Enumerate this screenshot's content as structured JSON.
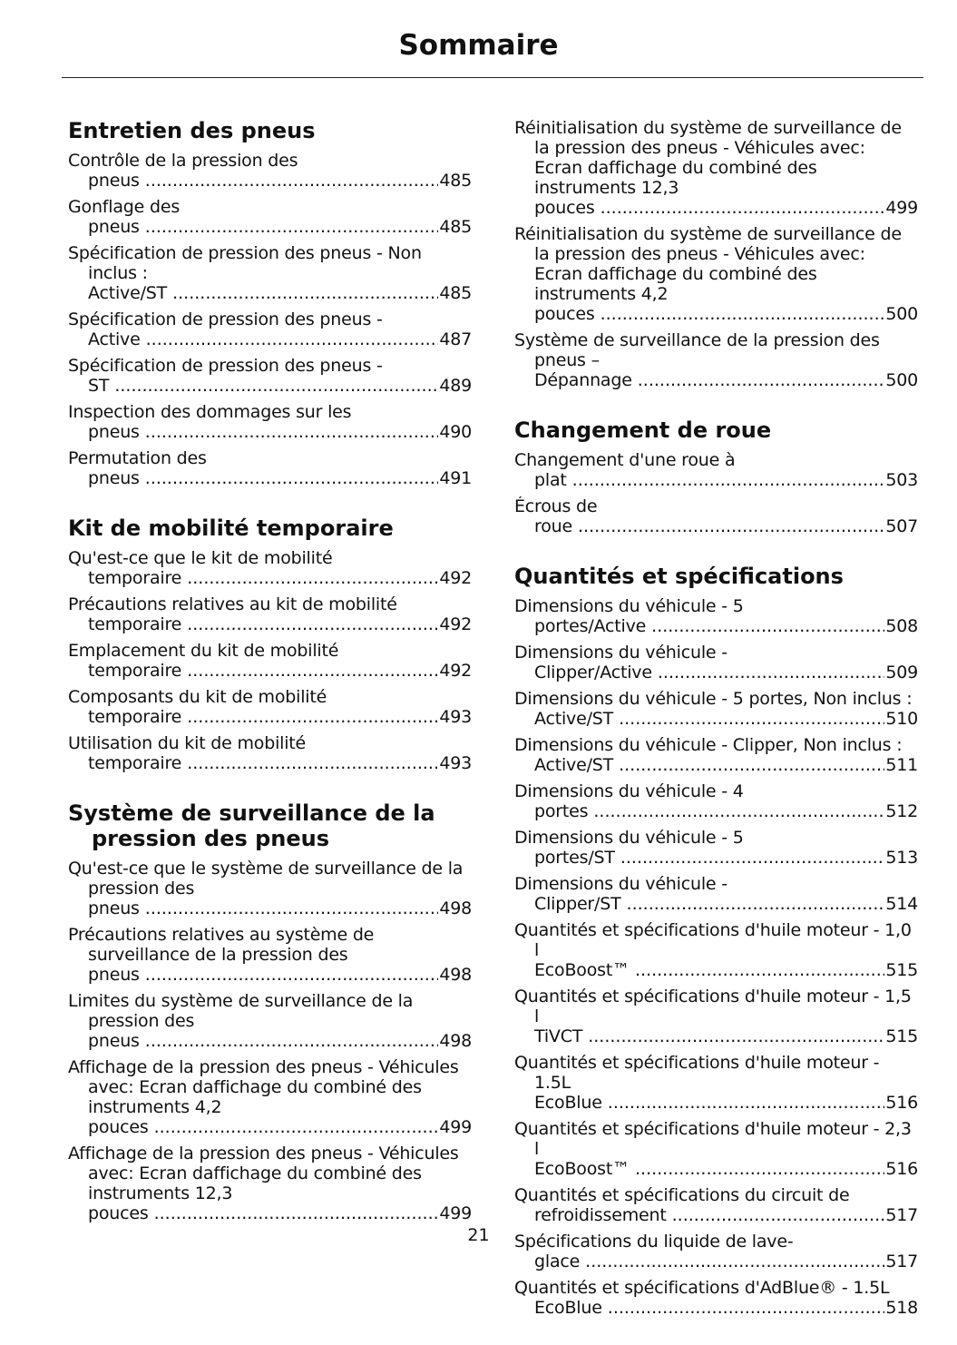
{
  "header": {
    "title": "Sommaire"
  },
  "columns": [
    {
      "sections": [
        {
          "heading": "Entretien des pneus",
          "entries": [
            {
              "title": "Contrôle de la pression des pneus",
              "page": "485"
            },
            {
              "title": "Gonflage des pneus",
              "page": "485"
            },
            {
              "title": "Spécification de pression des pneus - Non inclus : Active/ST",
              "page": "485"
            },
            {
              "title": "Spécification de pression des pneus - Active",
              "page": "487"
            },
            {
              "title": "Spécification de pression des pneus - ST",
              "page": "489"
            },
            {
              "title": "Inspection des dommages sur les pneus",
              "page": "490"
            },
            {
              "title": "Permutation des pneus",
              "page": "491"
            }
          ]
        },
        {
          "heading": "Kit de mobilité temporaire",
          "entries": [
            {
              "title": "Qu'est-ce que le kit de mobilité temporaire",
              "page": "492"
            },
            {
              "title": "Précautions relatives au kit de mobilité temporaire",
              "page": "492"
            },
            {
              "title": "Emplacement du kit de mobilité temporaire",
              "page": "492"
            },
            {
              "title": "Composants du kit de mobilité temporaire",
              "page": "493"
            },
            {
              "title": "Utilisation du kit de mobilité temporaire",
              "page": "493"
            }
          ]
        },
        {
          "heading": "Système de surveillance de la pression des pneus",
          "entries": [
            {
              "title": "Qu'est-ce que le système de surveillance de la pression des pneus",
              "page": "498"
            },
            {
              "title": "Précautions relatives au système de surveillance de la pression des pneus",
              "page": "498"
            },
            {
              "title": "Limites du système de surveillance de la pression des pneus",
              "page": "498"
            },
            {
              "title": "Affichage de la pression des pneus - Véhicules avec: Ecran daffichage du combiné des instruments 4,2 pouces",
              "page": "499"
            },
            {
              "title": "Affichage de la pression des pneus - Véhicules avec: Ecran daffichage du combiné des instruments 12,3 pouces",
              "page": "499"
            }
          ]
        }
      ]
    },
    {
      "sections": [
        {
          "entries": [
            {
              "title": "Réinitialisation du système de surveillance de la pression des pneus - Véhicules avec: Ecran daffichage du combiné des instruments 12,3 pouces",
              "page": "499"
            },
            {
              "title": "Réinitialisation du système de surveillance de la pression des pneus - Véhicules avec: Ecran daffichage du combiné des instruments 4,2 pouces",
              "page": "500"
            },
            {
              "title": "Système de surveillance de la pression des pneus – Dépannage",
              "page": "500"
            }
          ]
        },
        {
          "heading": "Changement de roue",
          "entries": [
            {
              "title": "Changement d'une roue à plat",
              "page": "503"
            },
            {
              "title": "Écrous de roue",
              "page": "507"
            }
          ]
        },
        {
          "heading": "Quantités et spécifications",
          "entries": [
            {
              "title": "Dimensions du véhicule - 5 portes/Active",
              "page": "508"
            },
            {
              "title": "Dimensions du véhicule - Clipper/Active",
              "page": "509"
            },
            {
              "title": "Dimensions du véhicule - 5 portes, Non inclus : Active/ST",
              "page": "510"
            },
            {
              "title": "Dimensions du véhicule - Clipper, Non inclus : Active/ST",
              "page": "511"
            },
            {
              "title": "Dimensions du véhicule - 4 portes",
              "page": "512"
            },
            {
              "title": "Dimensions du véhicule - 5 portes/ST",
              "page": "513"
            },
            {
              "title": "Dimensions du véhicule - Clipper/ST",
              "page": "514"
            },
            {
              "title": "Quantités et spécifications d'huile moteur - 1,0 l EcoBoost™",
              "page": "515"
            },
            {
              "title": "Quantités et spécifications d'huile moteur - 1,5 l TiVCT",
              "page": "515"
            },
            {
              "title": "Quantités et spécifications d'huile moteur - 1.5L EcoBlue",
              "page": "516"
            },
            {
              "title": "Quantités et spécifications d'huile moteur - 2,3 l EcoBoost™",
              "page": "516"
            },
            {
              "title": "Quantités et spécifications du circuit de refroidissement",
              "page": "517"
            },
            {
              "title": "Spécifications du liquide de lave-glace",
              "page": "517"
            },
            {
              "title": "Quantités et spécifications d'AdBlue® - 1.5L EcoBlue",
              "page": "518"
            }
          ]
        }
      ]
    }
  ],
  "footer": {
    "page_number": "21"
  }
}
